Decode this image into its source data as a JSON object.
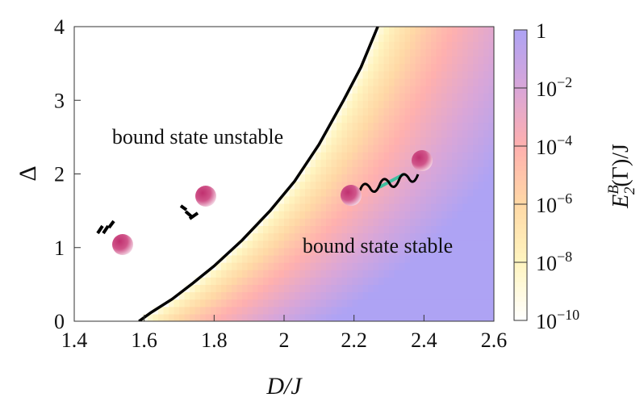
{
  "chart_data": {
    "type": "heatmap",
    "title": "",
    "xlabel": "D/J",
    "ylabel": "Δ",
    "xlim": [
      1.4,
      2.6
    ],
    "ylim": [
      0,
      4
    ],
    "xticks": [
      "1.4",
      "1.6",
      "1.8",
      "2",
      "2.2",
      "2.4",
      "2.6"
    ],
    "yticks": [
      "0",
      "1",
      "2",
      "3",
      "4"
    ],
    "colorbar": {
      "label_main": "E",
      "label_sup": "B",
      "label_sub": "2",
      "label_rest": "(Γ)/J",
      "scale": "log",
      "range": [
        1e-10,
        1
      ],
      "ticks": [
        "1",
        "10−2",
        "10−4",
        "10−6",
        "10−8",
        "10−10"
      ],
      "tick_exponents": [
        0,
        -2,
        -4,
        -6,
        -8,
        -10
      ],
      "colors": [
        "#ffffff",
        "#fff5c0",
        "#ffd9a6",
        "#ffb0ae",
        "#d9a6d8",
        "#aea3f4"
      ]
    },
    "boundary_curve": {
      "D": [
        1.585,
        1.62,
        1.68,
        1.74,
        1.8,
        1.88,
        1.96,
        2.03,
        2.1,
        2.17,
        2.22,
        2.268
      ],
      "Delta": [
        0,
        0.12,
        0.3,
        0.52,
        0.75,
        1.1,
        1.5,
        1.9,
        2.4,
        3.0,
        3.45,
        4
      ]
    },
    "annotations": {
      "unstable": "bound state unstable",
      "stable": "bound state stable"
    }
  }
}
